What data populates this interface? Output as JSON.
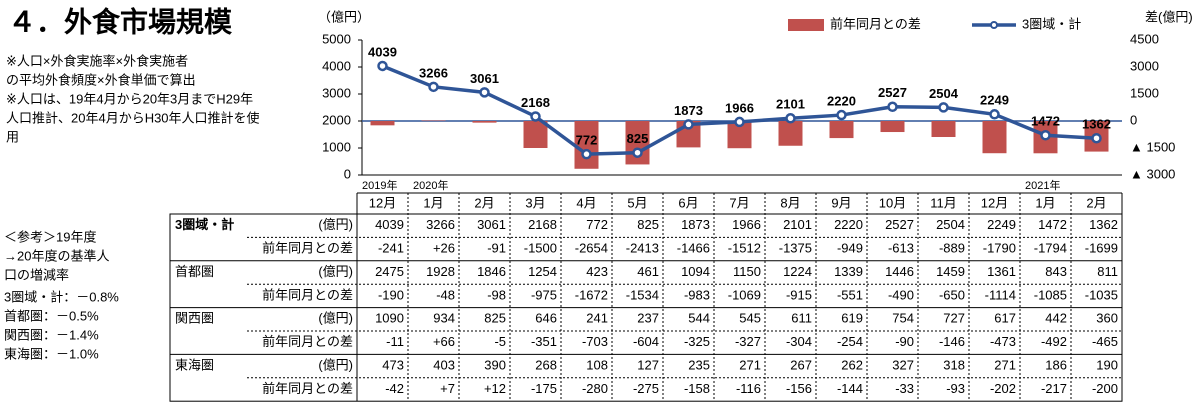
{
  "title": "４．外食市場規模",
  "notes": [
    "※人口×外食実施率×外食実施者",
    "の平均外食頻度×外食単価で算出",
    "※人口は、19年4月から20年3月までH29年",
    "人口推計、20年4月からH30年人口推計を使",
    "用"
  ],
  "reference": {
    "heading": [
      "＜参考＞19年度",
      "→20年度の基準人",
      "口の増減率"
    ],
    "items": [
      "3圏域・計：－0.8%",
      "首都圏：－0.5%",
      "関西圏：－1.4%",
      "東海圏：－1.0%"
    ]
  },
  "chart_data": {
    "type": "bar-line",
    "y_label": "（億円）",
    "y2_label": "差(億円)",
    "categories": [
      "12月",
      "1月",
      "2月",
      "3月",
      "4月",
      "5月",
      "6月",
      "7月",
      "8月",
      "9月",
      "10月",
      "11月",
      "12月",
      "1月",
      "2月"
    ],
    "year_labels": [
      {
        "category": 0,
        "label": "2019年"
      },
      {
        "category": 1,
        "label": "2020年"
      },
      {
        "category": 13,
        "label": "2021年"
      }
    ],
    "ylim": [
      0,
      5000
    ],
    "yticks": [
      0,
      1000,
      2000,
      3000,
      4000,
      5000
    ],
    "y2lim": [
      -3000,
      4500
    ],
    "y2ticks": [
      {
        "value": -3000,
        "label": "▲ 3000"
      },
      {
        "value": -1500,
        "label": "▲ 1500"
      },
      0,
      1500,
      3000,
      4500
    ],
    "legend": "top-right",
    "series": [
      {
        "name": "前年同月との差",
        "type": "bar",
        "axis": "y2",
        "color": "#c0504d",
        "values": [
          -241,
          26,
          -91,
          -1500,
          -2654,
          -2413,
          -1466,
          -1512,
          -1375,
          -949,
          -613,
          -889,
          -1790,
          -1794,
          -1699
        ]
      },
      {
        "name": "3圏域・計",
        "type": "line",
        "color": "#2f5597",
        "values": [
          4039,
          3266,
          3061,
          2168,
          772,
          825,
          1873,
          1966,
          2101,
          2220,
          2527,
          2504,
          2249,
          1472,
          1362
        ]
      }
    ]
  },
  "table": {
    "rows": [
      {
        "label": "3圏域・計",
        "unit": "(億円)",
        "values": [
          "4039",
          "3266",
          "3061",
          "2168",
          "772",
          "825",
          "1873",
          "1966",
          "2101",
          "2220",
          "2527",
          "2504",
          "2249",
          "1472",
          "1362"
        ]
      },
      {
        "label": "前年同月との差",
        "values": [
          "-241",
          "+26",
          "-91",
          "-1500",
          "-2654",
          "-2413",
          "-1466",
          "-1512",
          "-1375",
          "-949",
          "-613",
          "-889",
          "-1790",
          "-1794",
          "-1699"
        ]
      },
      {
        "label": "首都圏",
        "unit": "(億円)",
        "values": [
          "2475",
          "1928",
          "1846",
          "1254",
          "423",
          "461",
          "1094",
          "1150",
          "1224",
          "1339",
          "1446",
          "1459",
          "1361",
          "843",
          "811"
        ]
      },
      {
        "label": "前年同月との差",
        "values": [
          "-190",
          "-48",
          "-98",
          "-975",
          "-1672",
          "-1534",
          "-983",
          "-1069",
          "-915",
          "-551",
          "-490",
          "-650",
          "-1114",
          "-1085",
          "-1035"
        ]
      },
      {
        "label": "関西圏",
        "unit": "(億円)",
        "values": [
          "1090",
          "934",
          "825",
          "646",
          "241",
          "237",
          "544",
          "545",
          "611",
          "619",
          "754",
          "727",
          "617",
          "442",
          "360"
        ]
      },
      {
        "label": "前年同月との差",
        "values": [
          "-11",
          "+66",
          "-5",
          "-351",
          "-703",
          "-604",
          "-325",
          "-327",
          "-304",
          "-254",
          "-90",
          "-146",
          "-473",
          "-492",
          "-465"
        ]
      },
      {
        "label": "東海圏",
        "unit": "(億円)",
        "values": [
          "473",
          "403",
          "390",
          "268",
          "108",
          "127",
          "235",
          "271",
          "267",
          "262",
          "327",
          "318",
          "271",
          "186",
          "190"
        ]
      },
      {
        "label": "前年同月との差",
        "values": [
          "-42",
          "+7",
          "+12",
          "-175",
          "-280",
          "-275",
          "-158",
          "-116",
          "-156",
          "-144",
          "-33",
          "-93",
          "-202",
          "-217",
          "-200"
        ]
      }
    ]
  }
}
